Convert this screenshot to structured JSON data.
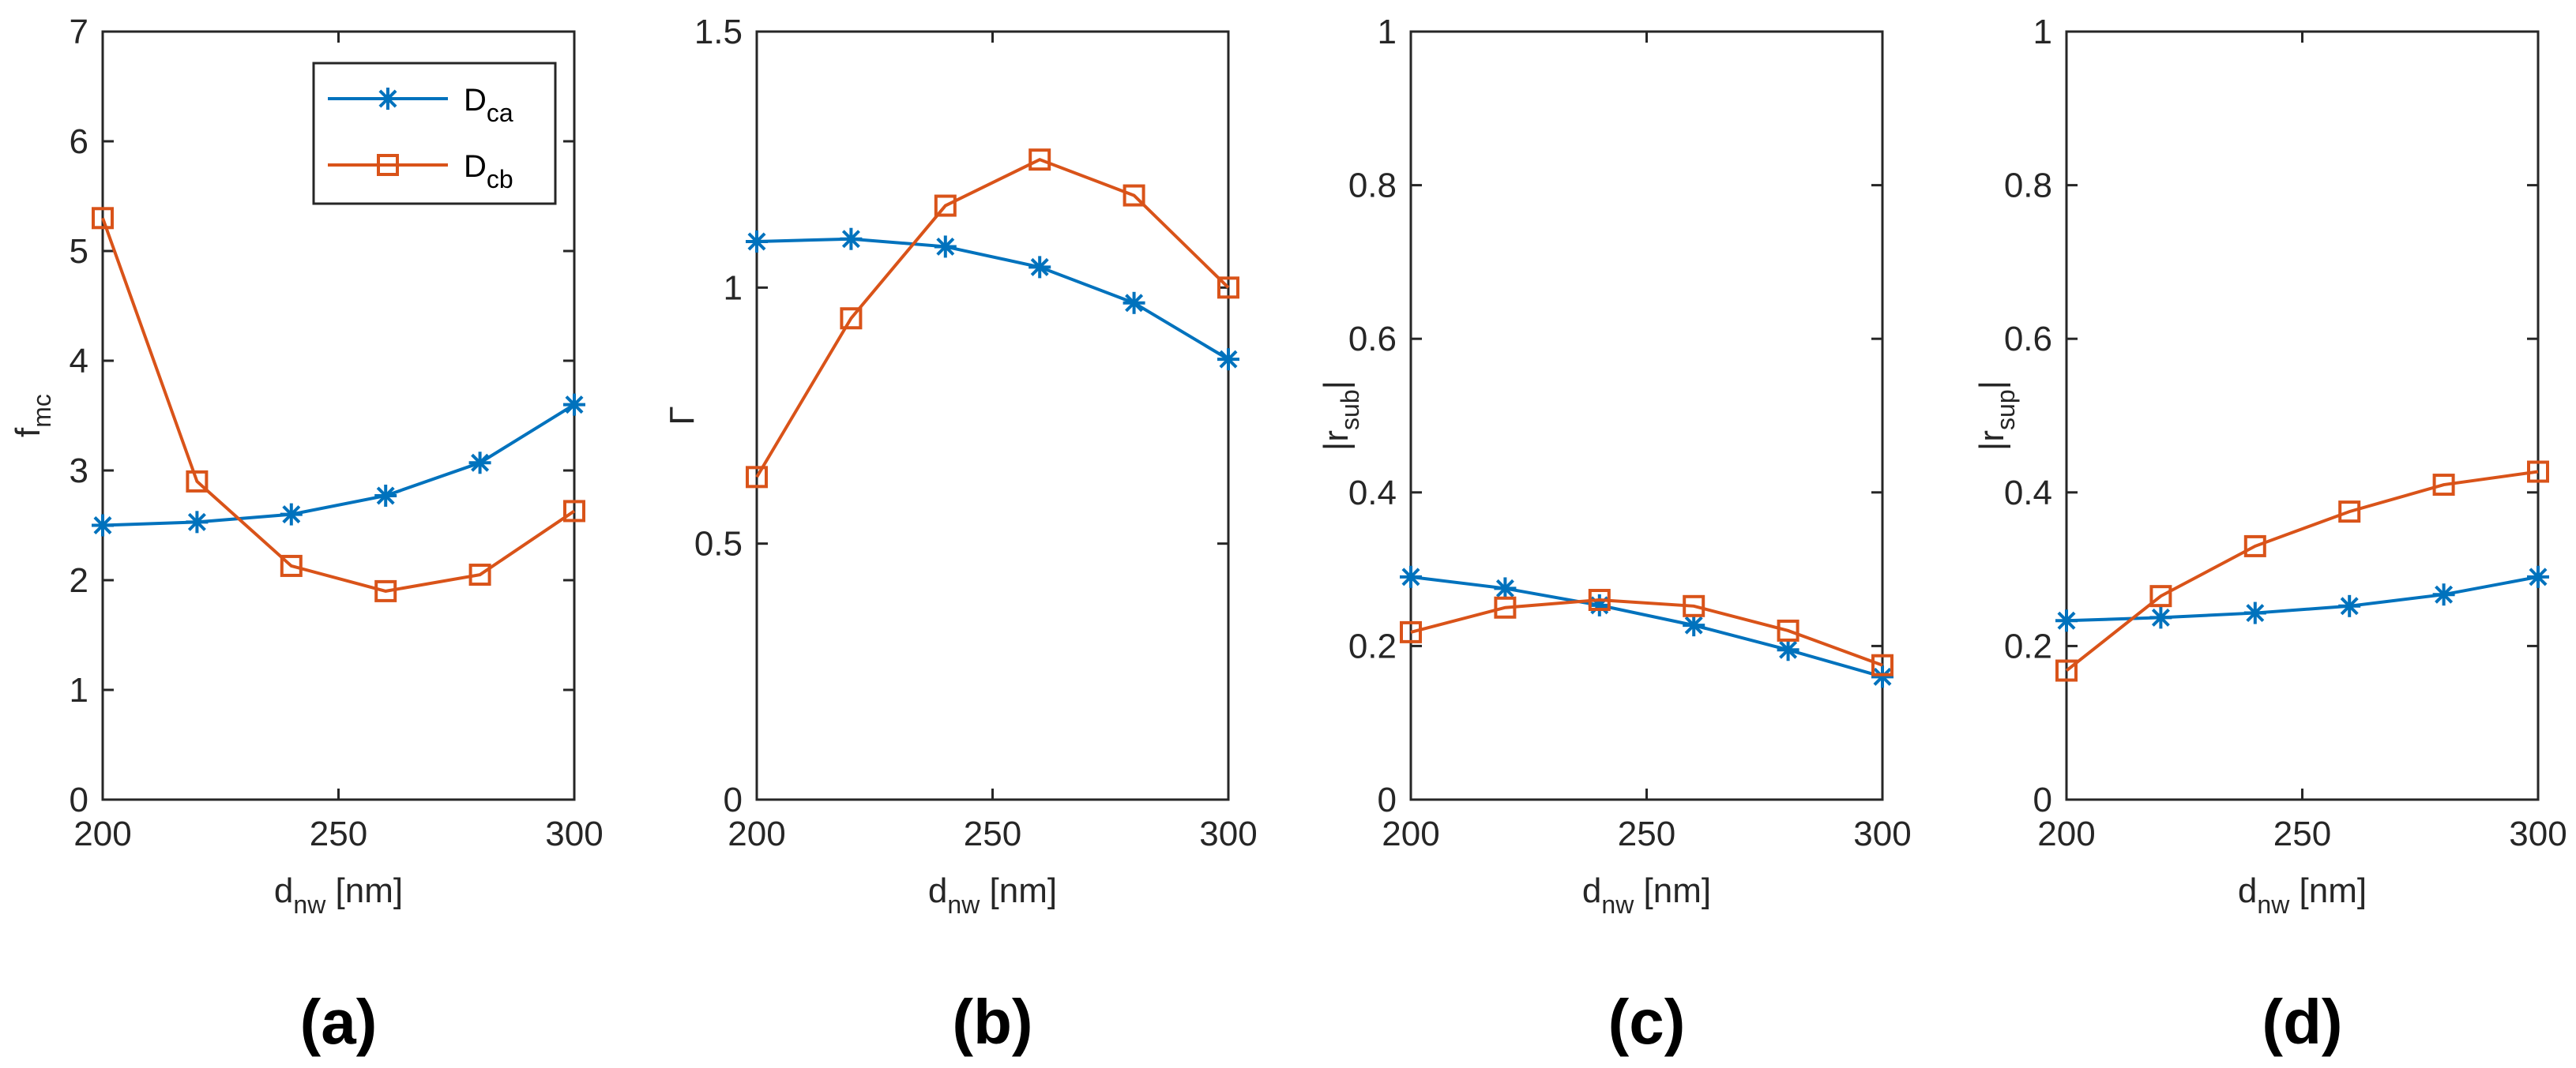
{
  "colors": {
    "series_ca": "#0072BD",
    "series_cb": "#D95319",
    "axis": "#262626"
  },
  "legend": {
    "entries": [
      {
        "main": "D",
        "sub": "ca",
        "marker": "asterisk",
        "series": 0
      },
      {
        "main": "D",
        "sub": "cb",
        "marker": "square",
        "series": 1
      }
    ]
  },
  "chart_data": [
    {
      "type": "line",
      "panel_label": "(a)",
      "x": [
        200,
        220,
        240,
        260,
        280,
        300
      ],
      "xlim": [
        200,
        300
      ],
      "xticks": [
        200,
        250,
        300
      ],
      "xlabel": {
        "main": "d",
        "sub": "nw",
        "rest": " [nm]"
      },
      "ylabel": {
        "main": "f",
        "sub": "mc"
      },
      "ylim": [
        0,
        7
      ],
      "yticks": [
        0,
        1,
        2,
        3,
        4,
        5,
        6,
        7
      ],
      "has_legend": true,
      "series": [
        {
          "name": "Dca",
          "marker": "asterisk",
          "values": [
            2.5,
            2.53,
            2.6,
            2.77,
            3.07,
            3.6
          ]
        },
        {
          "name": "Dcb",
          "marker": "square",
          "values": [
            5.3,
            2.9,
            2.13,
            1.9,
            2.05,
            2.63
          ]
        }
      ]
    },
    {
      "type": "line",
      "panel_label": "(b)",
      "x": [
        200,
        220,
        240,
        260,
        280,
        300
      ],
      "xlim": [
        200,
        300
      ],
      "xticks": [
        200,
        250,
        300
      ],
      "xlabel": {
        "main": "d",
        "sub": "nw",
        "rest": " [nm]"
      },
      "ylabel": {
        "main": "Γ",
        "sub": ""
      },
      "ylim": [
        0,
        1.5
      ],
      "yticks": [
        0,
        0.5,
        1,
        1.5
      ],
      "has_legend": false,
      "series": [
        {
          "name": "Dca",
          "marker": "asterisk",
          "values": [
            1.09,
            1.095,
            1.08,
            1.04,
            0.97,
            0.86
          ]
        },
        {
          "name": "Dcb",
          "marker": "square",
          "values": [
            0.63,
            0.94,
            1.16,
            1.25,
            1.18,
            1.0
          ]
        }
      ]
    },
    {
      "type": "line",
      "panel_label": "(c)",
      "x": [
        200,
        220,
        240,
        260,
        280,
        300
      ],
      "xlim": [
        200,
        300
      ],
      "xticks": [
        200,
        250,
        300
      ],
      "xlabel": {
        "main": "d",
        "sub": "nw",
        "rest": " [nm]"
      },
      "ylabel": {
        "main": "|r",
        "sub": "sub",
        "rest": "|"
      },
      "ylim": [
        0,
        1
      ],
      "yticks": [
        0,
        0.2,
        0.4,
        0.6,
        0.8,
        1
      ],
      "has_legend": false,
      "series": [
        {
          "name": "Dca",
          "marker": "asterisk",
          "values": [
            0.29,
            0.275,
            0.253,
            0.227,
            0.195,
            0.16
          ]
        },
        {
          "name": "Dcb",
          "marker": "square",
          "values": [
            0.218,
            0.25,
            0.26,
            0.252,
            0.22,
            0.175
          ]
        }
      ]
    },
    {
      "type": "line",
      "panel_label": "(d)",
      "x": [
        200,
        220,
        240,
        260,
        280,
        300
      ],
      "xlim": [
        200,
        300
      ],
      "xticks": [
        200,
        250,
        300
      ],
      "xlabel": {
        "main": "d",
        "sub": "nw",
        "rest": " [nm]"
      },
      "ylabel": {
        "main": "|r",
        "sub": "sup",
        "rest": "|"
      },
      "ylim": [
        0,
        1
      ],
      "yticks": [
        0,
        0.2,
        0.4,
        0.6,
        0.8,
        1
      ],
      "has_legend": false,
      "series": [
        {
          "name": "Dca",
          "marker": "asterisk",
          "values": [
            0.233,
            0.237,
            0.243,
            0.252,
            0.267,
            0.29
          ]
        },
        {
          "name": "Dcb",
          "marker": "square",
          "values": [
            0.168,
            0.265,
            0.33,
            0.375,
            0.41,
            0.427
          ]
        }
      ]
    }
  ]
}
